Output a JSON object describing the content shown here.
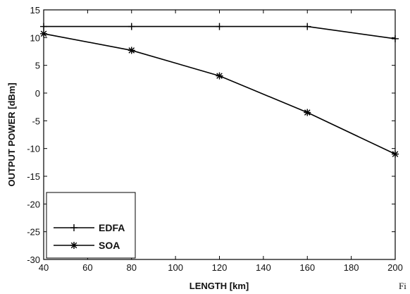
{
  "chart_data": {
    "type": "line",
    "xlabel": "LENGTH [km]",
    "ylabel": "OUTPUT POWER [dBm]",
    "xlim": [
      40,
      200
    ],
    "ylim": [
      -30,
      15
    ],
    "xticks": [
      40,
      60,
      80,
      100,
      120,
      140,
      160,
      180,
      200
    ],
    "yticks": [
      15,
      10,
      5,
      0,
      -5,
      -10,
      -15,
      -20,
      -25,
      -30
    ],
    "grid": false,
    "legend_position": "bottom-left",
    "series": [
      {
        "name": "EDFA",
        "marker": "plus",
        "x": [
          40,
          80,
          120,
          160,
          200
        ],
        "y": [
          12,
          12,
          12,
          12,
          9.8
        ]
      },
      {
        "name": "SOA",
        "marker": "star",
        "x": [
          40,
          80,
          120,
          160,
          200
        ],
        "y": [
          10.7,
          7.7,
          3.1,
          -3.5,
          -11
        ]
      }
    ]
  },
  "corner_note": "Fi"
}
